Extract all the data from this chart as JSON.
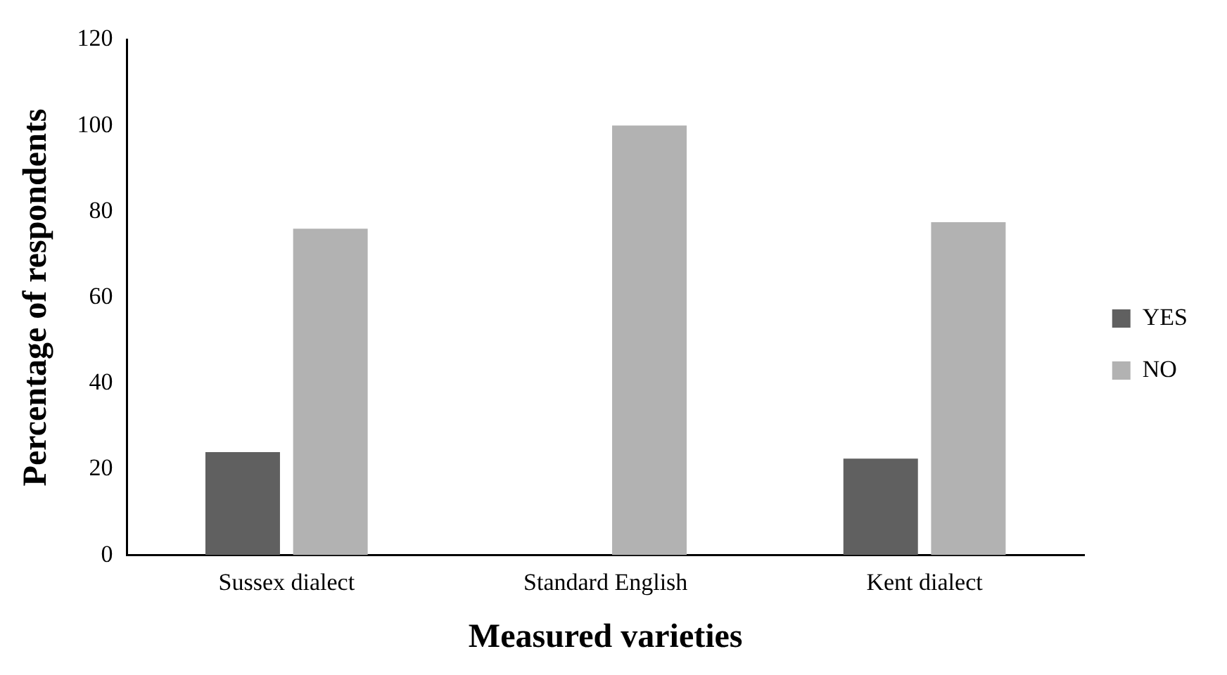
{
  "chart_data": {
    "type": "bar",
    "xlabel": "Measured varieties",
    "ylabel": "Percentage of respondents",
    "categories": [
      "Sussex dialect",
      "Standard English",
      "Kent dialect"
    ],
    "series": [
      {
        "name": "YES",
        "color": "#606060",
        "values": [
          24,
          0,
          22.5
        ]
      },
      {
        "name": "NO",
        "color": "#b2b2b2",
        "values": [
          76,
          100,
          77.5
        ]
      }
    ],
    "ylim": [
      0,
      120
    ],
    "yticks": [
      0,
      20,
      40,
      60,
      80,
      100,
      120
    ],
    "grid": false,
    "legend": "right"
  }
}
